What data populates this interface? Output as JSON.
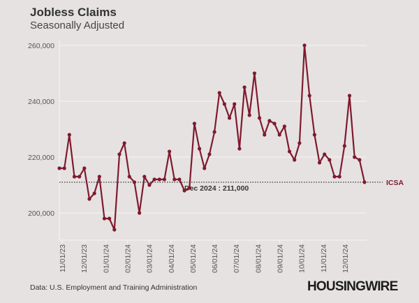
{
  "chart_data": {
    "type": "line",
    "title": "Jobless Claims",
    "subtitle": "Seasonally Adjusted",
    "xlabel": "",
    "ylabel": "",
    "ylim": [
      190000,
      262000
    ],
    "yticks": [
      200000,
      220000,
      240000,
      260000
    ],
    "ytick_labels": [
      "200,000",
      "220,000",
      "240,000",
      "260,000"
    ],
    "xtick_labels": [
      "11/01/23",
      "12/01/23",
      "01/01/24",
      "02/01/24",
      "03/01/24",
      "04/01/24",
      "05/01/24",
      "06/01/24",
      "07/01/24",
      "08/01/24",
      "09/01/24",
      "10/01/24",
      "11/01/24",
      "12/01/24"
    ],
    "grid": "horizontal",
    "series": [
      {
        "name": "ICSA",
        "color": "#7f1a2e",
        "values": [
          216000,
          216000,
          228000,
          213000,
          213000,
          216000,
          205000,
          207000,
          213000,
          198000,
          198000,
          194000,
          221000,
          225000,
          213000,
          211000,
          200000,
          213000,
          210000,
          212000,
          212000,
          212000,
          222000,
          212000,
          212000,
          208000,
          209000,
          232000,
          223000,
          216000,
          221000,
          229000,
          243000,
          239000,
          234000,
          239000,
          223000,
          245000,
          235000,
          250000,
          234000,
          228000,
          233000,
          232000,
          228000,
          231000,
          222000,
          219000,
          225000,
          260000,
          242000,
          228000,
          218000,
          221000,
          219000,
          213000,
          213000,
          224000,
          242000,
          220000,
          219000,
          211000
        ]
      }
    ],
    "reference_line": {
      "value": 211000,
      "label": "Dec 2024 : 211,000",
      "style": "dotted"
    },
    "series_end_label": "ICSA"
  },
  "footer": {
    "source": "Data: U.S. Employment and Training Administration",
    "brand": "HOUSINGWIRE"
  }
}
